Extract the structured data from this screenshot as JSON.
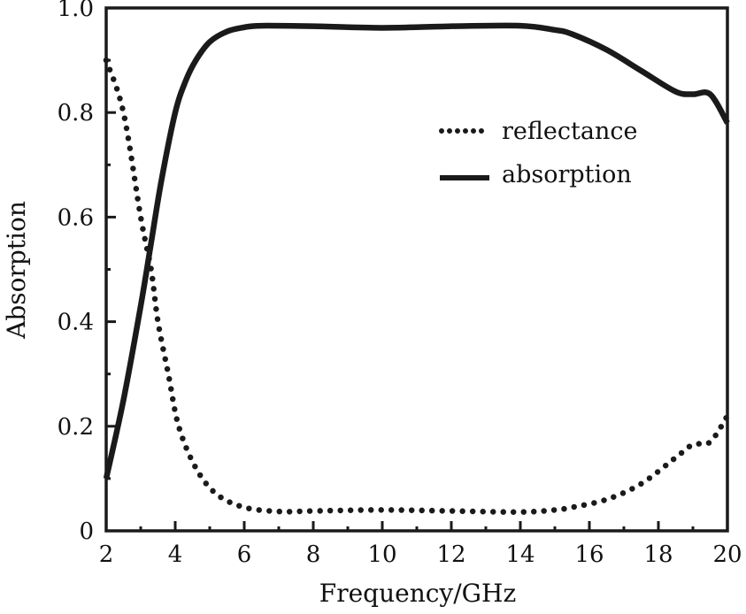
{
  "chart_data": {
    "type": "line",
    "title": "",
    "xlabel": "Frequency/GHz",
    "ylabel": "Absorption",
    "xlim": [
      2,
      20
    ],
    "ylim": [
      0,
      1.0
    ],
    "xticks": [
      2,
      4,
      6,
      8,
      10,
      12,
      14,
      16,
      18,
      20
    ],
    "xtick_labels": [
      "2",
      "4",
      "6",
      "8",
      "10",
      "12",
      "14",
      "16",
      "18",
      "20"
    ],
    "yticks": [
      0,
      0.2,
      0.4,
      0.6,
      0.8,
      1.0
    ],
    "ytick_labels": [
      "0",
      "0.2",
      "0.4",
      "0.6",
      "0.8",
      "1.0"
    ],
    "grid": false,
    "legend_position": "upper-right",
    "series": [
      {
        "name": "reflectance",
        "style": "dotted",
        "color": "#1a1a1a",
        "x": [
          2,
          2.5,
          3,
          3.3,
          3.5,
          3.8,
          4.1,
          4.6,
          5.2,
          6,
          7,
          8,
          10,
          12,
          14,
          15,
          15.5,
          16.5,
          17.5,
          18.5,
          19,
          19.5,
          20
        ],
        "y": [
          0.9,
          0.8,
          0.6,
          0.5,
          0.4,
          0.3,
          0.2,
          0.12,
          0.07,
          0.045,
          0.037,
          0.038,
          0.04,
          0.038,
          0.036,
          0.04,
          0.045,
          0.06,
          0.09,
          0.14,
          0.165,
          0.17,
          0.22
        ]
      },
      {
        "name": "absorption",
        "style": "solid",
        "color": "#1a1a1a",
        "x": [
          2,
          2.5,
          3,
          3.3,
          3.6,
          4,
          4.3,
          4.6,
          5,
          5.5,
          6,
          6.5,
          8,
          10,
          12,
          14,
          15,
          15.5,
          16.5,
          17.5,
          18.5,
          19,
          19.5,
          20
        ],
        "y": [
          0.1,
          0.25,
          0.43,
          0.55,
          0.67,
          0.8,
          0.86,
          0.9,
          0.935,
          0.955,
          0.963,
          0.966,
          0.965,
          0.962,
          0.965,
          0.966,
          0.958,
          0.95,
          0.92,
          0.88,
          0.84,
          0.835,
          0.835,
          0.78
        ]
      }
    ]
  }
}
